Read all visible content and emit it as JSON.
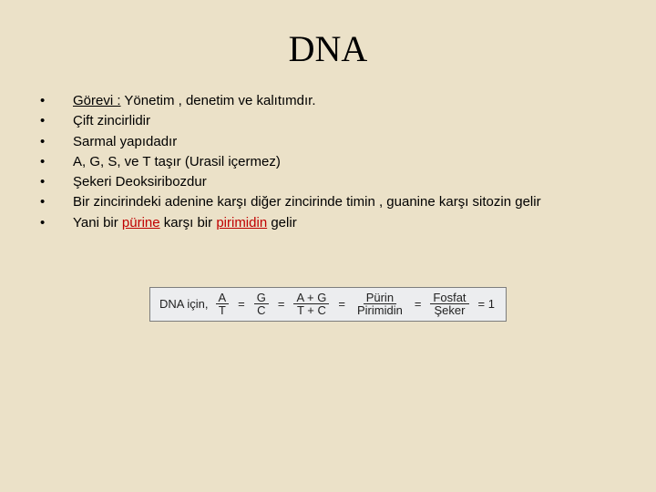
{
  "title": "DNA",
  "bullets": [
    {
      "pre": "",
      "u1": "Görevi :",
      "mid": " Yönetim , denetim ve kalıtımdır."
    },
    {
      "pre": "Çift zincirlidir"
    },
    {
      "pre": "Sarmal yapıdadır"
    },
    {
      "pre": "A, G, S, ve T taşır (Urasil içermez)"
    },
    {
      "pre": "Şekeri Deoksiribozdur"
    },
    {
      "pre": "Bir zincirindeki adenine karşı diğer zincirinde timin , guanine karşı sitozin gelir"
    },
    {
      "pre": "Yani bir ",
      "r1": "pürine",
      "mid": " karşı bir ",
      "r2": "pirimidin",
      "post": " gelir"
    }
  ],
  "formula": {
    "label": "DNA için,",
    "fracs": [
      {
        "n": "A",
        "d": "T"
      },
      {
        "n": "G",
        "d": "C"
      },
      {
        "n": "A + G",
        "d": "T + C"
      },
      {
        "n": "Pürin",
        "d": "Pirimidin"
      },
      {
        "n": "Fosfat",
        "d": "Şeker"
      }
    ],
    "tail": "= 1"
  },
  "colors": {
    "background": "#ebe1c8",
    "accent_red": "#c00000",
    "formula_bg": "#ecedef",
    "formula_border": "#7d7d7d"
  }
}
